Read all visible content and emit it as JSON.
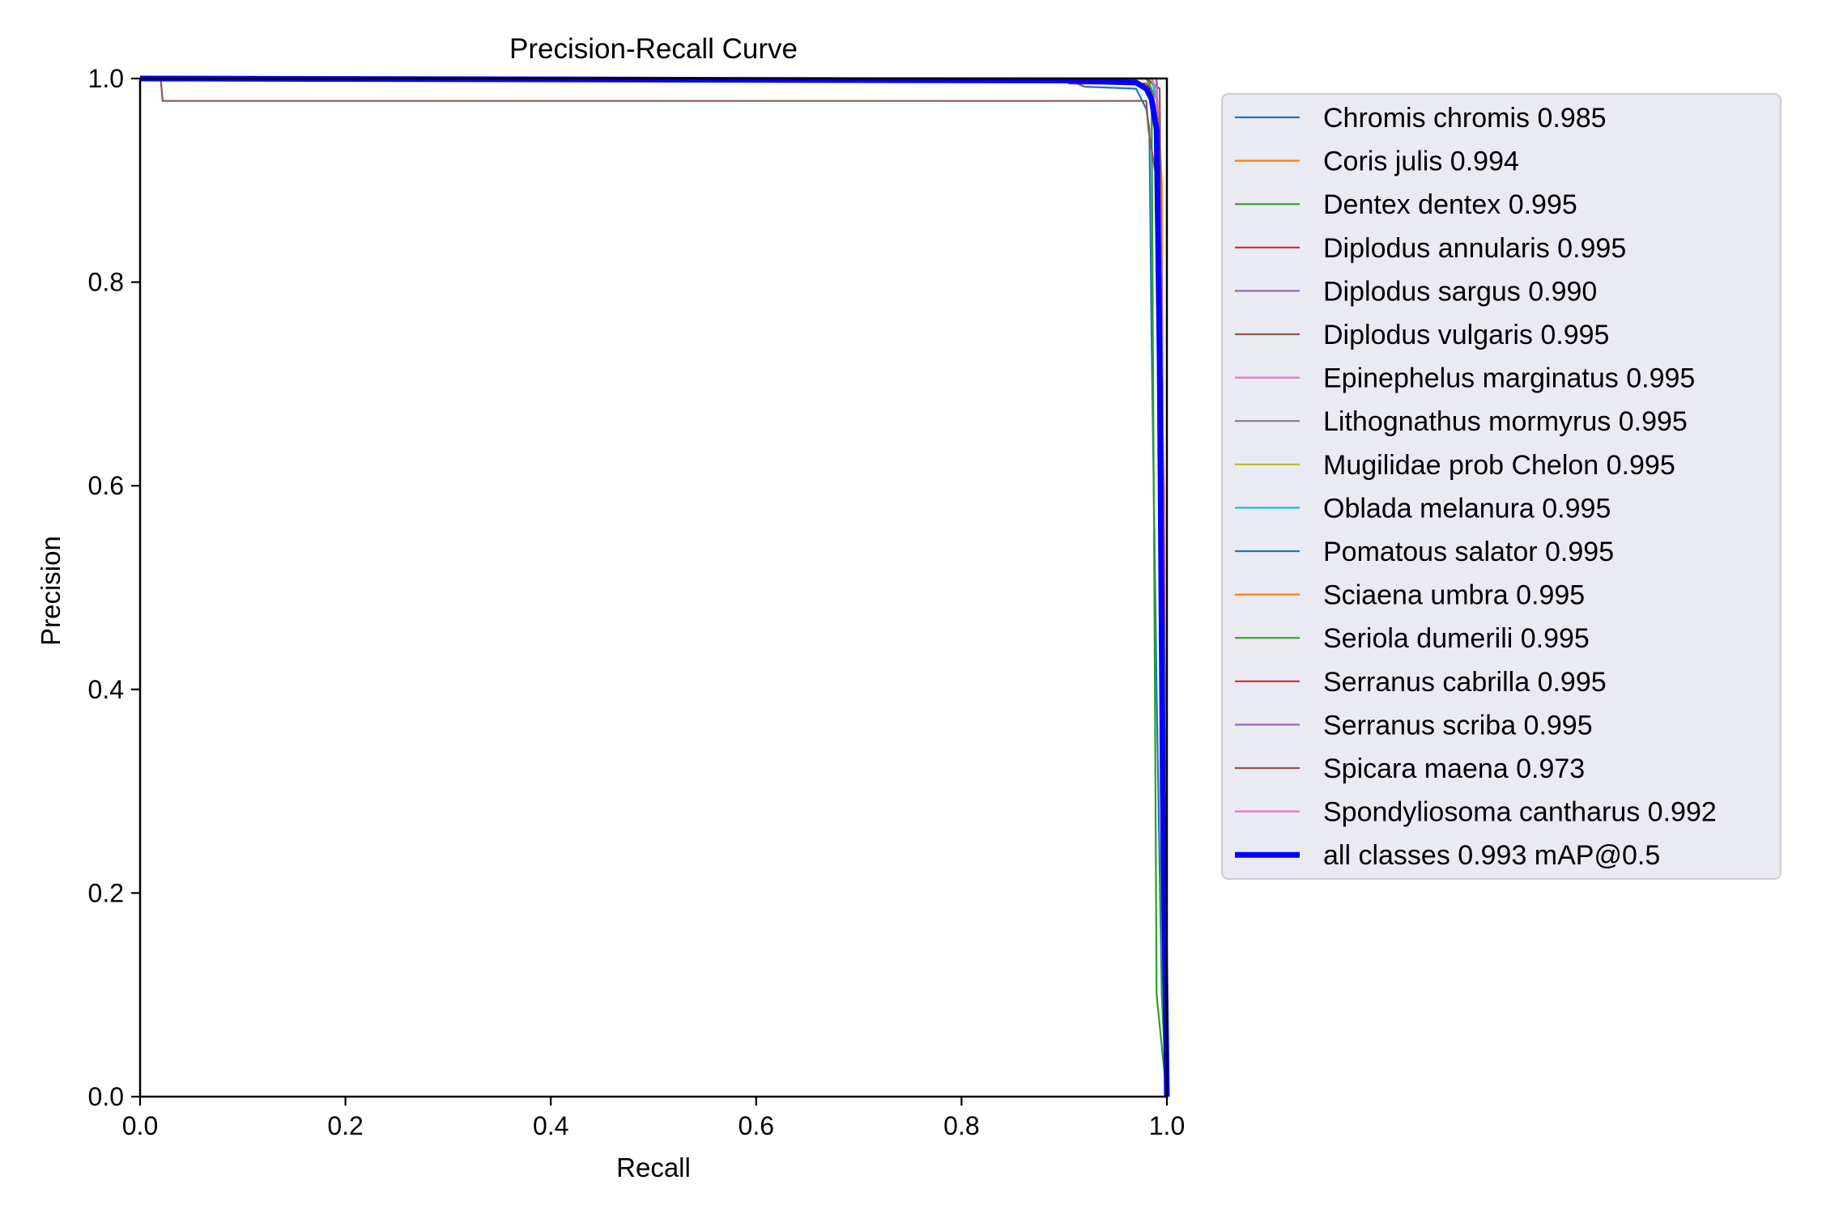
{
  "chart_data": {
    "type": "line",
    "title": "Precision-Recall Curve",
    "xlabel": "Recall",
    "ylabel": "Precision",
    "xlim": [
      0,
      1
    ],
    "ylim": [
      0,
      1
    ],
    "xticks": [
      "0.0",
      "0.2",
      "0.4",
      "0.6",
      "0.8",
      "1.0"
    ],
    "yticks": [
      "0.0",
      "0.2",
      "0.4",
      "0.6",
      "0.8",
      "1.0"
    ],
    "grid": false,
    "legend_position": "outside-right",
    "series": [
      {
        "name": "Chromis chromis 0.985",
        "color": "#1f77b4",
        "x": [
          0,
          0.9,
          0.92,
          0.97,
          0.98,
          0.983,
          0.985,
          0.99,
          0.995,
          1.0
        ],
        "y": [
          1,
          1,
          0.992,
          0.99,
          0.97,
          0.95,
          0.75,
          0.4,
          0.1,
          0
        ]
      },
      {
        "name": "Coris julis 0.994",
        "color": "#ff7f0e",
        "x": [
          0,
          0.98,
          0.99,
          0.995,
          0.997,
          1.0
        ],
        "y": [
          1,
          1,
          0.99,
          0.9,
          0.3,
          0
        ]
      },
      {
        "name": "Dentex dentex 0.995",
        "color": "#2ca02c",
        "x": [
          0,
          0.985,
          0.99,
          0.993,
          0.995,
          1.0
        ],
        "y": [
          1,
          1,
          0.98,
          0.7,
          0.1,
          0
        ]
      },
      {
        "name": "Diplodus annularis 0.995",
        "color": "#d62728",
        "x": [
          0,
          0.9,
          0.905,
          0.98,
          0.99,
          0.997,
          1.0
        ],
        "y": [
          1,
          1,
          0.995,
          0.995,
          0.98,
          0.6,
          0
        ]
      },
      {
        "name": "Diplodus sargus 0.990",
        "color": "#9467bd",
        "x": [
          0,
          0.98,
          0.99,
          0.995,
          1.0
        ],
        "y": [
          1,
          1,
          0.98,
          0.5,
          0
        ]
      },
      {
        "name": "Diplodus vulgaris 0.995",
        "color": "#8c564b",
        "x": [
          0,
          0.98,
          0.993,
          0.996,
          1.0
        ],
        "y": [
          1,
          1,
          0.99,
          0.6,
          0
        ]
      },
      {
        "name": "Epinephelus marginatus 0.995",
        "color": "#e377c2",
        "x": [
          0,
          0.99,
          0.995,
          1.0
        ],
        "y": [
          1,
          1,
          0.8,
          0
        ]
      },
      {
        "name": "Lithognathus mormyrus 0.995",
        "color": "#7f7f7f",
        "x": [
          0,
          0.99,
          0.995,
          1.0
        ],
        "y": [
          1,
          1,
          0.8,
          0
        ]
      },
      {
        "name": "Mugilidae prob Chelon 0.995",
        "color": "#bcbd22",
        "x": [
          0,
          0.99,
          0.995,
          1.0
        ],
        "y": [
          1,
          1,
          0.8,
          0
        ]
      },
      {
        "name": "Oblada melanura 0.995",
        "color": "#17becf",
        "x": [
          0,
          0.985,
          0.99,
          0.995,
          1.0
        ],
        "y": [
          1,
          1,
          0.98,
          0.4,
          0
        ]
      },
      {
        "name": "Pomatous salator 0.995",
        "color": "#1f77b4",
        "x": [
          0,
          0.99,
          0.995,
          1.0
        ],
        "y": [
          1,
          1,
          0.8,
          0
        ]
      },
      {
        "name": "Sciaena umbra 0.995",
        "color": "#ff7f0e",
        "x": [
          0,
          0.99,
          0.995,
          1.0
        ],
        "y": [
          1,
          1,
          0.8,
          0
        ]
      },
      {
        "name": "Seriola dumerili 0.995",
        "color": "#2ca02c",
        "x": [
          0,
          0.98,
          0.985,
          0.99,
          1.0
        ],
        "y": [
          1,
          1,
          0.99,
          0.1,
          0
        ]
      },
      {
        "name": "Serranus cabrilla 0.995",
        "color": "#d62728",
        "x": [
          0,
          0.99,
          0.995,
          1.0
        ],
        "y": [
          1,
          1,
          0.8,
          0
        ]
      },
      {
        "name": "Serranus scriba 0.995",
        "color": "#9467bd",
        "x": [
          0,
          0.99,
          0.995,
          1.0
        ],
        "y": [
          1,
          1,
          0.8,
          0
        ]
      },
      {
        "name": "Spicara maena 0.973",
        "color": "#8c564b",
        "x": [
          0,
          0.02,
          0.022,
          0.98,
          0.982,
          0.99,
          0.995,
          1.0
        ],
        "y": [
          1,
          1,
          0.978,
          0.978,
          0.95,
          0.9,
          0.5,
          0
        ]
      },
      {
        "name": "Spondyliosoma cantharus 0.992",
        "color": "#e377c2",
        "x": [
          0,
          0.985,
          0.99,
          0.995,
          1.0
        ],
        "y": [
          1,
          1,
          0.99,
          0.6,
          0
        ]
      },
      {
        "name": "all classes 0.993 mAP@0.5",
        "color": "#0000ff",
        "bold": true,
        "x": [
          0,
          0.9,
          0.97,
          0.98,
          0.985,
          0.99,
          0.993,
          0.996,
          1.0
        ],
        "y": [
          1,
          0.998,
          0.996,
          0.99,
          0.98,
          0.95,
          0.72,
          0.3,
          0
        ]
      }
    ]
  }
}
